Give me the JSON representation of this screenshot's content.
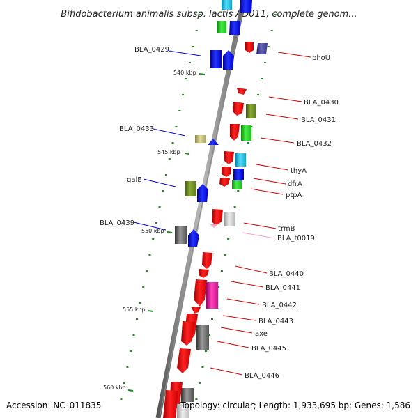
{
  "title": "Bifidobacterium animalis subsp. lactis AD011, complete genom...",
  "footer": {
    "accession": "Accession: NC_011835",
    "summary": "Topology: circular; Length: 1,933,695 bp; Genes: 1,586"
  },
  "scale": [
    {
      "label": "540 kbp",
      "kb": 540
    },
    {
      "label": "545 kbp",
      "kb": 545
    },
    {
      "label": "550 kbp",
      "kb": 550
    },
    {
      "label": "555 kbp",
      "kb": 555
    },
    {
      "label": "560 kbp",
      "kb": 560
    }
  ],
  "colors": {
    "red": "#ff0000",
    "blue": "#0000ee",
    "green": "#22cc22",
    "olive": "#6b8e23",
    "khaki": "#bdb76b",
    "gray": "#666666",
    "lightgray": "#cccccc",
    "cyan": "#11ccee",
    "navy": "#333388",
    "magenta": "#ee1199",
    "pink": "#ff99cc",
    "rightLabel": "#cc0000",
    "leftLabel": "#0000cc",
    "tick": "#228822"
  },
  "genes": [
    {
      "name": "BLA_0429",
      "side": "left",
      "color": "#0000cc",
      "kb": 537.2
    },
    {
      "name": "phoU",
      "side": "right",
      "color": "#cc0000",
      "kb": 537.6
    },
    {
      "name": "BLA_0430",
      "side": "right",
      "color": "#cc0000",
      "kb": 540.8
    },
    {
      "name": "BLA_0431",
      "side": "right",
      "color": "#cc0000",
      "kb": 541.8
    },
    {
      "name": "BLA_0433",
      "side": "left",
      "color": "#0000cc",
      "kb": 543.5
    },
    {
      "name": "BLA_0432",
      "side": "right",
      "color": "#cc0000",
      "kb": 543.3
    },
    {
      "name": "thyA",
      "side": "right",
      "color": "#cc0000",
      "kb": 545.5
    },
    {
      "name": "galE",
      "side": "left",
      "color": "#0000cc",
      "kb": 546.8
    },
    {
      "name": "dfrA",
      "side": "right",
      "color": "#cc0000",
      "kb": 546.2
    },
    {
      "name": "ptpA",
      "side": "right",
      "color": "#cc0000",
      "kb": 546.8
    },
    {
      "name": "BLA_0439",
      "side": "left",
      "color": "#0000cc",
      "kb": 549.5
    },
    {
      "name": "trmB",
      "side": "right",
      "color": "#cc0000",
      "kb": 549.2
    },
    {
      "name": "BLA_t0019",
      "side": "right",
      "color": "#ff99cc",
      "kb": 549.9
    },
    {
      "name": "BLA_0440",
      "side": "right",
      "color": "#cc0000",
      "kb": 552.3
    },
    {
      "name": "BLA_0441",
      "side": "right",
      "color": "#cc0000",
      "kb": 553.3
    },
    {
      "name": "BLA_0442",
      "side": "right",
      "color": "#cc0000",
      "kb": 554.5
    },
    {
      "name": "BLA_0443",
      "side": "right",
      "color": "#cc0000",
      "kb": 555.5
    },
    {
      "name": "axe",
      "side": "right",
      "color": "#cc0000",
      "kb": 556.3
    },
    {
      "name": "BLA_0445",
      "side": "right",
      "color": "#cc0000",
      "kb": 557.5
    },
    {
      "name": "BLA_0446",
      "side": "right",
      "color": "#cc0000",
      "kb": 559.4
    }
  ]
}
